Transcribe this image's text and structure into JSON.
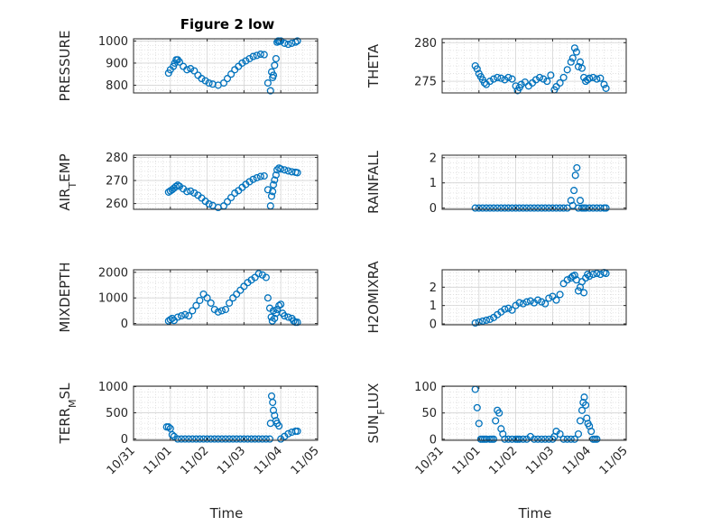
{
  "figure": {
    "title": "Figure 2 low",
    "marker_color": "#0072BD"
  },
  "x_axis": {
    "label": "Time",
    "tick_values": [
      0,
      1,
      2,
      3,
      4,
      5
    ],
    "tick_labels": [
      "10/31",
      "11/01",
      "11/02",
      "11/03",
      "11/04",
      "11/05"
    ]
  },
  "chart_data": [
    {
      "type": "scatter",
      "ylabel": "PRESSURE",
      "ylim": [
        765,
        1010
      ],
      "yticks": [
        800,
        900,
        1000
      ],
      "yticklabels": [
        "800",
        "900",
        "1000"
      ],
      "series": [
        {
          "x": [
            0.95,
            1.0,
            1.08,
            1.12,
            1.16,
            1.2,
            1.25,
            1.35,
            1.45,
            1.55,
            1.65,
            1.75,
            1.85,
            1.95,
            2.05,
            2.15,
            2.3,
            2.45,
            2.55,
            2.65,
            2.75,
            2.85,
            2.95,
            3.05,
            3.15,
            3.25,
            3.35,
            3.45,
            3.55,
            3.65,
            3.72,
            3.75,
            3.78,
            3.8,
            3.83,
            3.87,
            3.9,
            3.93,
            3.96,
            4.0,
            4.1,
            4.2,
            4.3,
            4.4,
            4.45
          ],
          "y": [
            855,
            870,
            885,
            900,
            915,
            915,
            905,
            885,
            870,
            875,
            865,
            845,
            830,
            820,
            810,
            805,
            800,
            810,
            830,
            850,
            870,
            885,
            900,
            910,
            920,
            930,
            935,
            940,
            938,
            810,
            775,
            860,
            835,
            845,
            890,
            920,
            995,
            1000,
            998,
            1000,
            990,
            985,
            990,
            995,
            1000
          ]
        }
      ]
    },
    {
      "type": "scatter",
      "ylabel": "THETA",
      "ylim": [
        273.5,
        280.5
      ],
      "yticks": [
        275,
        280
      ],
      "yticklabels": [
        "275",
        "280"
      ],
      "series": [
        {
          "x": [
            0.9,
            0.95,
            1.0,
            1.05,
            1.1,
            1.15,
            1.2,
            1.3,
            1.4,
            1.5,
            1.6,
            1.7,
            1.8,
            1.9,
            2.0,
            2.05,
            2.1,
            2.15,
            2.25,
            2.35,
            2.45,
            2.55,
            2.65,
            2.75,
            2.85,
            2.95,
            3.05,
            3.1,
            3.2,
            3.3,
            3.4,
            3.5,
            3.55,
            3.6,
            3.65,
            3.7,
            3.75,
            3.8,
            3.85,
            3.9,
            3.95,
            4.0,
            4.1,
            4.2,
            4.3,
            4.4,
            4.45
          ],
          "y": [
            277,
            276.6,
            276,
            275.6,
            275.2,
            274.8,
            274.6,
            275,
            275.3,
            275.5,
            275.4,
            275.2,
            275.5,
            275.3,
            274.4,
            273.8,
            274.2,
            274.6,
            274.9,
            274.4,
            274.8,
            275.2,
            275.5,
            275.3,
            275,
            275.8,
            273.9,
            274.3,
            274.8,
            275.5,
            276.5,
            277.5,
            278,
            279.3,
            278.8,
            276.9,
            277.5,
            276.7,
            275.5,
            275,
            275.2,
            275.4,
            275.5,
            275.3,
            275.4,
            274.6,
            274.1
          ]
        }
      ]
    },
    {
      "type": "scatter",
      "ylabel": "AIR_TEMP",
      "ylim": [
        257.5,
        281
      ],
      "yticks": [
        260,
        270,
        280
      ],
      "yticklabels": [
        "260",
        "270",
        "280"
      ],
      "series": [
        {
          "x": [
            0.95,
            1.0,
            1.05,
            1.1,
            1.15,
            1.2,
            1.25,
            1.35,
            1.45,
            1.55,
            1.65,
            1.75,
            1.85,
            1.95,
            2.05,
            2.15,
            2.3,
            2.45,
            2.55,
            2.65,
            2.75,
            2.85,
            2.95,
            3.05,
            3.15,
            3.25,
            3.35,
            3.45,
            3.55,
            3.65,
            3.72,
            3.75,
            3.78,
            3.8,
            3.83,
            3.87,
            3.9,
            3.95,
            4.0,
            4.1,
            4.2,
            4.3,
            4.4,
            4.45
          ],
          "y": [
            265,
            265.5,
            266,
            266.7,
            267.4,
            268,
            267.5,
            266.4,
            265.2,
            265.4,
            264.6,
            263.6,
            262.4,
            261,
            259.8,
            259.2,
            258.3,
            259,
            260.8,
            262.6,
            264.5,
            265.6,
            267,
            268.3,
            269.5,
            270.5,
            271.2,
            271.8,
            272,
            266,
            259,
            263.2,
            265.2,
            268.2,
            270.2,
            272.4,
            274.6,
            275.4,
            275,
            274.6,
            274.2,
            273.8,
            273.6,
            273.4
          ]
        }
      ]
    },
    {
      "type": "scatter",
      "ylabel": "RAINFALL",
      "ylim": [
        -0.05,
        2.1
      ],
      "yticks": [
        0,
        1,
        2
      ],
      "yticklabels": [
        "0",
        "1",
        "2"
      ],
      "series": [
        {
          "x": [
            0.9,
            1.0,
            1.1,
            1.2,
            1.3,
            1.4,
            1.5,
            1.6,
            1.7,
            1.8,
            1.9,
            2.0,
            2.1,
            2.2,
            2.3,
            2.4,
            2.5,
            2.6,
            2.7,
            2.8,
            2.9,
            3.0,
            3.1,
            3.2,
            3.3,
            3.4,
            3.5,
            3.55,
            3.58,
            3.62,
            3.66,
            3.7,
            3.75,
            3.8,
            3.85,
            3.9,
            4.0,
            4.1,
            4.2,
            4.3,
            4.4,
            4.45
          ],
          "y": [
            0,
            0,
            0,
            0,
            0,
            0,
            0,
            0,
            0,
            0,
            0,
            0,
            0,
            0,
            0,
            0,
            0,
            0,
            0,
            0,
            0,
            0,
            0,
            0,
            0,
            0,
            0.3,
            0.1,
            0.7,
            1.3,
            1.6,
            0,
            0.3,
            0,
            0,
            0,
            0,
            0,
            0,
            0,
            0,
            0
          ]
        }
      ]
    },
    {
      "type": "scatter",
      "ylabel": "MIXDEPTH",
      "ylim": [
        -50,
        2100
      ],
      "yticks": [
        0,
        1000,
        2000
      ],
      "yticklabels": [
        "0",
        "1000",
        "2000"
      ],
      "series": [
        {
          "x": [
            0.95,
            1.0,
            1.05,
            1.1,
            1.2,
            1.3,
            1.4,
            1.5,
            1.6,
            1.7,
            1.8,
            1.9,
            2.0,
            2.1,
            2.2,
            2.3,
            2.4,
            2.5,
            2.6,
            2.7,
            2.8,
            2.9,
            3.0,
            3.1,
            3.2,
            3.3,
            3.4,
            3.5,
            3.6,
            3.65,
            3.7,
            3.74,
            3.77,
            3.8,
            3.83,
            3.87,
            3.9,
            3.95,
            4.0,
            4.05,
            4.1,
            4.2,
            4.3,
            4.35,
            4.4,
            4.45
          ],
          "y": [
            100,
            150,
            200,
            120,
            250,
            300,
            350,
            300,
            500,
            700,
            900,
            1150,
            1000,
            800,
            550,
            450,
            500,
            550,
            800,
            1000,
            1150,
            1300,
            1450,
            1600,
            1700,
            1800,
            1950,
            1900,
            1800,
            1000,
            600,
            250,
            100,
            500,
            200,
            400,
            550,
            700,
            750,
            400,
            300,
            250,
            200,
            100,
            50,
            50
          ]
        }
      ]
    },
    {
      "type": "scatter",
      "ylabel": "H2OMIXRA",
      "ylim": [
        -0.05,
        2.95
      ],
      "yticks": [
        0,
        1,
        2
      ],
      "yticklabels": [
        "0",
        "1",
        "2"
      ],
      "series": [
        {
          "x": [
            0.9,
            1.0,
            1.1,
            1.2,
            1.3,
            1.4,
            1.5,
            1.6,
            1.7,
            1.8,
            1.9,
            2.0,
            2.1,
            2.2,
            2.3,
            2.4,
            2.5,
            2.6,
            2.7,
            2.8,
            2.9,
            3.0,
            3.1,
            3.2,
            3.3,
            3.4,
            3.5,
            3.55,
            3.6,
            3.65,
            3.7,
            3.75,
            3.8,
            3.85,
            3.9,
            3.95,
            4.0,
            4.1,
            4.2,
            4.3,
            4.4,
            4.45
          ],
          "y": [
            0.05,
            0.1,
            0.15,
            0.2,
            0.25,
            0.35,
            0.5,
            0.65,
            0.8,
            0.85,
            0.75,
            1.0,
            1.15,
            1.1,
            1.2,
            1.25,
            1.15,
            1.3,
            1.2,
            1.1,
            1.4,
            1.5,
            1.3,
            1.6,
            2.2,
            2.4,
            2.5,
            2.6,
            2.65,
            2.4,
            1.8,
            2.0,
            2.3,
            1.7,
            2.5,
            2.7,
            2.6,
            2.7,
            2.75,
            2.7,
            2.8,
            2.75
          ]
        }
      ]
    },
    {
      "type": "scatter",
      "ylabel": "TERR_MSL",
      "ylim": [
        -25,
        1010
      ],
      "yticks": [
        0,
        500,
        1000
      ],
      "yticklabels": [
        "0",
        "500",
        "1000"
      ],
      "series": [
        {
          "x": [
            0.9,
            0.95,
            1.0,
            1.05,
            1.1,
            1.2,
            1.3,
            1.4,
            1.5,
            1.6,
            1.7,
            1.8,
            1.9,
            2.0,
            2.1,
            2.2,
            2.3,
            2.4,
            2.5,
            2.6,
            2.7,
            2.8,
            2.9,
            3.0,
            3.1,
            3.2,
            3.3,
            3.4,
            3.5,
            3.6,
            3.7,
            3.72,
            3.75,
            3.78,
            3.8,
            3.83,
            3.87,
            3.9,
            3.95,
            4.0,
            4.1,
            4.2,
            4.3,
            4.4,
            4.45
          ],
          "y": [
            230,
            230,
            200,
            80,
            50,
            0,
            0,
            0,
            0,
            0,
            0,
            0,
            0,
            0,
            0,
            0,
            0,
            0,
            0,
            0,
            0,
            0,
            0,
            0,
            0,
            0,
            0,
            0,
            0,
            0,
            0,
            300,
            820,
            700,
            550,
            450,
            350,
            300,
            250,
            0,
            50,
            100,
            130,
            150,
            150
          ]
        }
      ]
    },
    {
      "type": "scatter",
      "ylabel": "SUN_FLUX",
      "ylim": [
        -2,
        101
      ],
      "yticks": [
        0,
        50,
        100
      ],
      "yticklabels": [
        "0",
        "50",
        "100"
      ],
      "series": [
        {
          "x": [
            0.9,
            0.95,
            1.0,
            1.05,
            1.1,
            1.15,
            1.2,
            1.3,
            1.35,
            1.4,
            1.45,
            1.5,
            1.55,
            1.6,
            1.65,
            1.7,
            1.8,
            1.9,
            2.0,
            2.05,
            2.1,
            2.2,
            2.3,
            2.4,
            2.5,
            2.6,
            2.7,
            2.8,
            2.9,
            3.0,
            3.05,
            3.1,
            3.2,
            3.3,
            3.4,
            3.5,
            3.6,
            3.7,
            3.75,
            3.8,
            3.83,
            3.86,
            3.9,
            3.93,
            3.96,
            4.0,
            4.05,
            4.1,
            4.15,
            4.2
          ],
          "y": [
            95,
            60,
            30,
            0,
            0,
            0,
            0,
            0,
            0,
            0,
            35,
            55,
            50,
            20,
            10,
            0,
            0,
            0,
            0,
            0,
            0,
            0,
            0,
            5,
            0,
            0,
            0,
            0,
            0,
            0,
            5,
            15,
            10,
            0,
            0,
            0,
            0,
            10,
            35,
            55,
            70,
            80,
            65,
            40,
            30,
            25,
            15,
            0,
            0,
            0
          ]
        }
      ]
    }
  ]
}
